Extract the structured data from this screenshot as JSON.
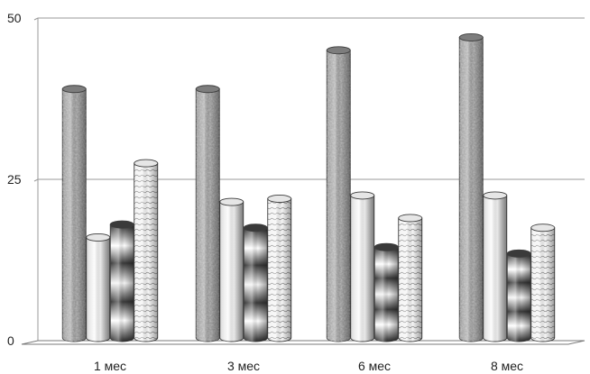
{
  "chart_data": {
    "type": "bar",
    "categories": [
      "1 мес",
      "3 мес",
      "6 мес",
      "8 мес"
    ],
    "series": [
      {
        "values": [
          39,
          39,
          45,
          47
        ],
        "pattern": "granite"
      },
      {
        "values": [
          16,
          21.5,
          22.5,
          22.5
        ],
        "pattern": "light"
      },
      {
        "values": [
          18,
          17.5,
          14.5,
          13.5
        ],
        "pattern": "banded"
      },
      {
        "values": [
          27.5,
          22,
          19,
          17.5
        ],
        "pattern": "hatched"
      }
    ],
    "ylim": [
      0,
      50
    ],
    "yticks": [
      "0",
      "25",
      "50"
    ],
    "grid": true,
    "title": "",
    "xlabel": "",
    "ylabel": "",
    "bar_shape": "cylinder",
    "three_d": true
  }
}
